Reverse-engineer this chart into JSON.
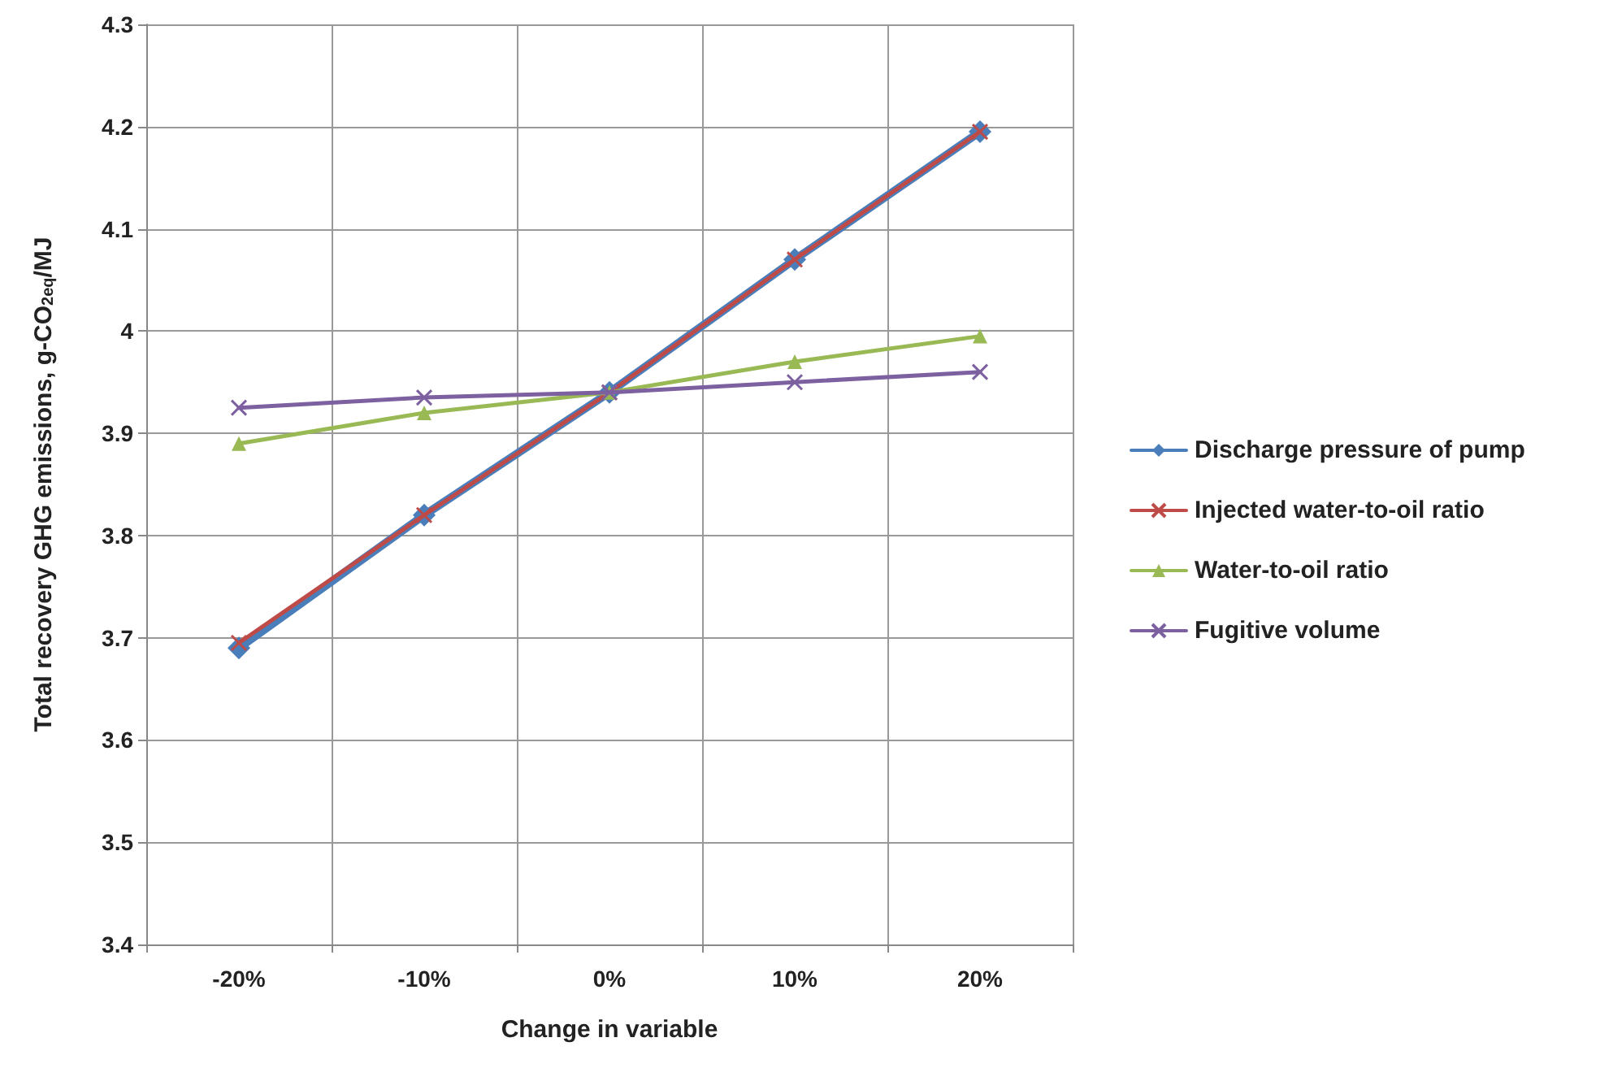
{
  "chart_data": {
    "type": "line",
    "xlabel": "Change in variable",
    "ylabel": "Total recovery GHG emissions, g-CO$_{2eq}$/MJ",
    "categories": [
      "-20%",
      "-10%",
      "0%",
      "10%",
      "20%"
    ],
    "ylim": [
      3.4,
      4.3
    ],
    "yticks": [
      3.4,
      3.5,
      3.6,
      3.7,
      3.8,
      3.9,
      4,
      4.1,
      4.2,
      4.3
    ],
    "grid": true,
    "legend": "right",
    "series": [
      {
        "name": "Discharge pressure of pump",
        "color": "#4a7ebb",
        "marker": "diamond",
        "values": [
          3.69,
          3.82,
          3.94,
          4.07,
          4.195
        ]
      },
      {
        "name": "Injected water-to-oil ratio",
        "color": "#be4b48",
        "marker": "cross",
        "values": [
          3.695,
          3.82,
          3.94,
          4.07,
          4.195
        ]
      },
      {
        "name": "Water-to-oil ratio",
        "color": "#98b954",
        "marker": "triangle",
        "values": [
          3.89,
          3.92,
          3.94,
          3.97,
          3.995
        ]
      },
      {
        "name": "Fugitive volume",
        "color": "#7d60a0",
        "marker": "cross",
        "values": [
          3.925,
          3.935,
          3.94,
          3.95,
          3.96
        ]
      }
    ]
  }
}
